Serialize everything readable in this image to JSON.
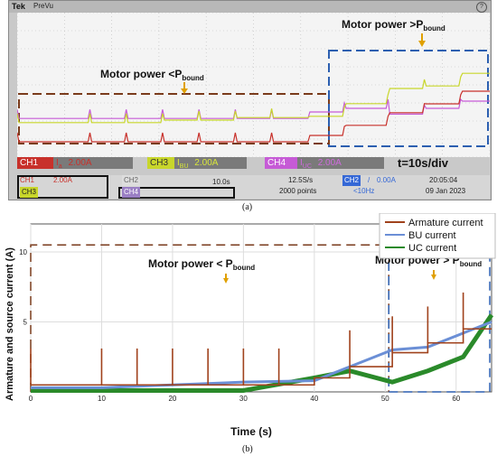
{
  "scope": {
    "brand": "Tek",
    "mode": "PreVu",
    "annotation_low": "Motor power <P",
    "annotation_low_sub": "bound",
    "annotation_high": "Motor power >P",
    "annotation_high_sub": "bound",
    "timebase_note": "t=10s/div",
    "channel_labels": [
      {
        "id": "CH1",
        "signal": "I",
        "sub": "a",
        "scale": "2.00A",
        "color": "#c8312b"
      },
      {
        "id": "CH3",
        "signal": "I",
        "sub": "BU",
        "scale": "2.00A",
        "color": "#c8d62b"
      },
      {
        "id": "CH4",
        "signal": "I",
        "sub": "UC",
        "scale": "2.00A",
        "color": "#c65bd6"
      }
    ],
    "status": {
      "ch1": "CH1",
      "ch1_val": "2.00A",
      "ch2": "CH2",
      "ch2_val": "",
      "ch3": "CH3",
      "ch3_val": "",
      "ch4": "CH4",
      "ch4_val": "",
      "timebase": "10.0s",
      "sample_rate": "12.5S/s",
      "points": "2000 points",
      "trig_ch": "CH2",
      "trig_val": "0.00A",
      "bw": "<10Hz",
      "time": "20:05:04",
      "date": "09 Jan 2023"
    },
    "marker_1": "1",
    "caption": "(a)"
  },
  "chart_data": {
    "type": "line",
    "title": "",
    "xlabel": "Time (s)",
    "ylabel": "Armature and source current (A)",
    "xlim": [
      0,
      65
    ],
    "ylim": [
      0,
      12
    ],
    "x_ticks": [
      0,
      10,
      20,
      30,
      40,
      50,
      60
    ],
    "y_ticks": [
      5,
      10
    ],
    "grid": true,
    "legend_position": "top-right",
    "legend": [
      "Armature current",
      "BU current",
      "UC current"
    ],
    "annotations": [
      {
        "text": "Motor power < P",
        "sub": "bound"
      },
      {
        "text": "Motor power > P",
        "sub": "bound"
      }
    ],
    "power_bound_low": 10.5,
    "power_bound_high": 11.0,
    "series": [
      {
        "name": "Armature current",
        "color": "#a0421c",
        "x": [
          0,
          10,
          20,
          30,
          40,
          45,
          51,
          56,
          61,
          65
        ],
        "y": [
          0.5,
          0.5,
          0.5,
          0.5,
          1.0,
          1.8,
          2.8,
          3.5,
          4.5,
          5.5
        ]
      },
      {
        "name": "BU current",
        "color": "#6b8fd6",
        "x": [
          0,
          10,
          20,
          30,
          40,
          45,
          51,
          56,
          61,
          65
        ],
        "y": [
          0.3,
          0.3,
          0.5,
          0.7,
          0.8,
          1.8,
          3.0,
          3.2,
          4.2,
          5.0
        ]
      },
      {
        "name": "UC current",
        "color": "#2a8a2a",
        "x": [
          0,
          10,
          20,
          30,
          40,
          45,
          51,
          56,
          61,
          65
        ],
        "y": [
          0.1,
          0.1,
          0.1,
          0.1,
          1.0,
          1.5,
          0.7,
          1.5,
          2.5,
          5.5
        ]
      }
    ],
    "spikes_x": [
      0,
      10,
      15,
      20,
      25,
      30,
      35,
      45,
      51,
      56,
      61
    ],
    "caption": "(b)"
  },
  "colors": {
    "ch1": "#c8312b",
    "ch3": "#c8d62b",
    "ch4": "#c65bd6",
    "ch2": "#3568d6",
    "bound_low": "#7a3b1c",
    "bound_high": "#2c5fb0",
    "annot_arrow": "#e0a000"
  }
}
